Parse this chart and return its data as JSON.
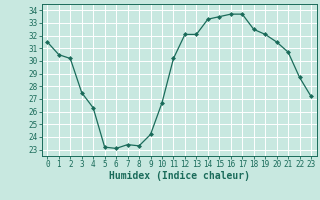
{
  "x": [
    0,
    1,
    2,
    3,
    4,
    5,
    6,
    7,
    8,
    9,
    10,
    11,
    12,
    13,
    14,
    15,
    16,
    17,
    18,
    19,
    20,
    21,
    22,
    23
  ],
  "y": [
    31.5,
    30.5,
    30.2,
    27.5,
    26.3,
    23.2,
    23.1,
    23.4,
    23.3,
    24.2,
    26.7,
    30.2,
    32.1,
    32.1,
    33.3,
    33.5,
    33.7,
    33.7,
    32.5,
    32.1,
    31.5,
    30.7,
    28.7,
    27.2
  ],
  "bg_color": "#c8e8e0",
  "grid_color": "#b0d8d0",
  "line_color": "#1a6b5a",
  "marker_color": "#1a6b5a",
  "ylabel_values": [
    23,
    24,
    25,
    26,
    27,
    28,
    29,
    30,
    31,
    32,
    33,
    34
  ],
  "xlabel": "Humidex (Indice chaleur)",
  "ylim": [
    22.5,
    34.5
  ],
  "xlim": [
    -0.5,
    23.5
  ],
  "xticks": [
    0,
    1,
    2,
    3,
    4,
    5,
    6,
    7,
    8,
    9,
    10,
    11,
    12,
    13,
    14,
    15,
    16,
    17,
    18,
    19,
    20,
    21,
    22,
    23
  ]
}
